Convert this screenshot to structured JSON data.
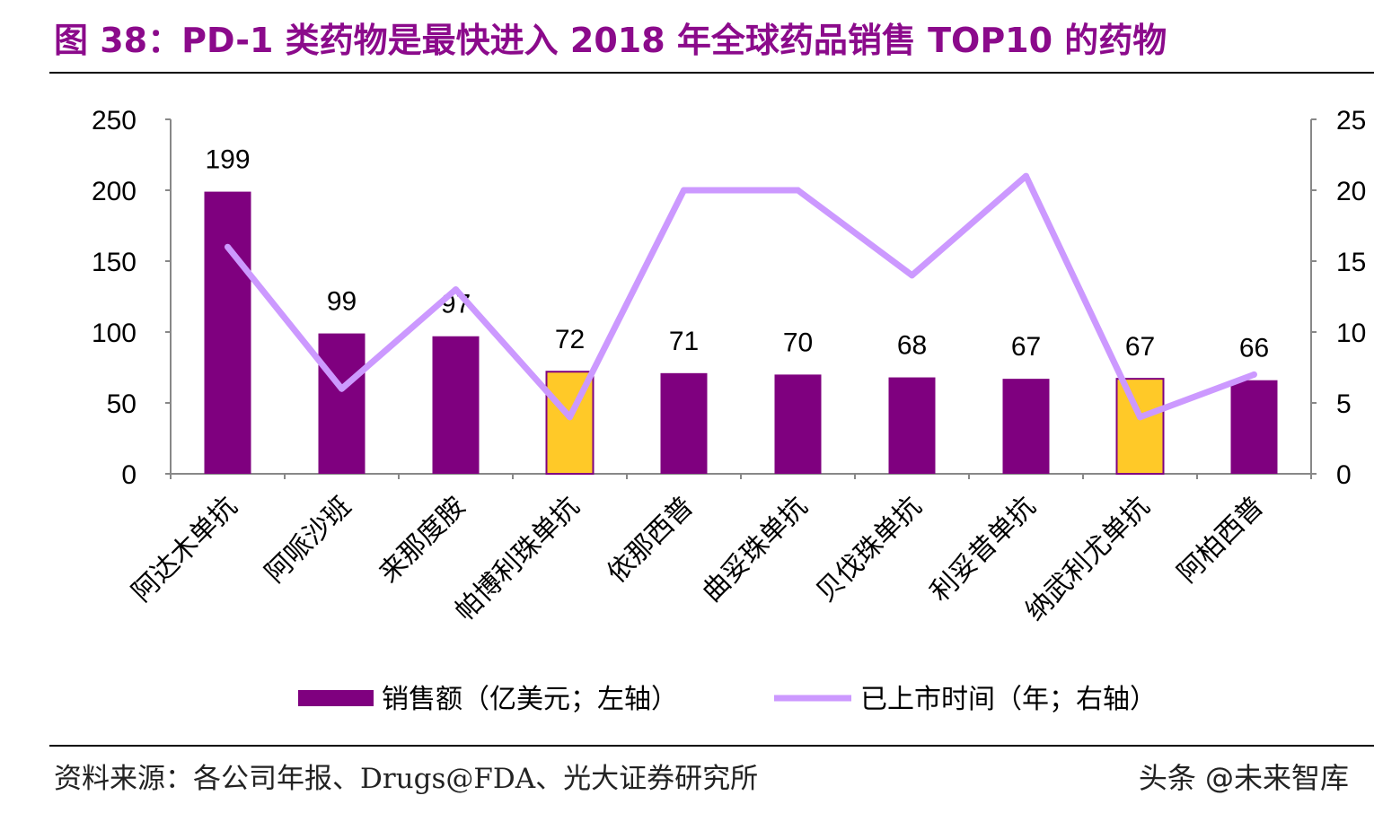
{
  "title": "图 38：PD-1 类药物是最快进入 2018 年全球药品销售 TOP10 的药物",
  "source": "资料来源：各公司年报、Drugs@FDA、光大证券研究所",
  "watermark": "头条 @未来智库",
  "chart_data": {
    "type": "bar+line",
    "categories": [
      "阿达木单抗",
      "阿哌沙班",
      "来那度胺",
      "帕博利珠单抗",
      "依那西普",
      "曲妥珠单抗",
      "贝伐珠单抗",
      "利妥昔单抗",
      "纳武利尤单抗",
      "阿柏西普"
    ],
    "series": [
      {
        "name": "销售额（亿美元；左轴）",
        "type": "bar",
        "axis": "left",
        "values": [
          199,
          99,
          97,
          72,
          71,
          70,
          68,
          67,
          67,
          66
        ],
        "color": "#7F007F",
        "highlight_color": "#FFC928",
        "highlight_indices": [
          3,
          8
        ],
        "data_labels": [
          "199",
          "99",
          "97",
          "72",
          "71",
          "70",
          "68",
          "67",
          "67",
          "66"
        ]
      },
      {
        "name": "已上市时间（年；右轴）",
        "type": "line",
        "axis": "right",
        "values": [
          16,
          6,
          13,
          4,
          20,
          20,
          14,
          21,
          4,
          7
        ],
        "color": "#CC99FF"
      }
    ],
    "y_left": {
      "range": [
        0,
        250
      ],
      "ticks": [
        "0",
        "50",
        "100",
        "150",
        "200",
        "250"
      ]
    },
    "y_right": {
      "range": [
        0,
        25
      ],
      "ticks": [
        "0",
        "5",
        "10",
        "15",
        "20",
        "25"
      ]
    },
    "grid": false,
    "legend": "bottom"
  }
}
